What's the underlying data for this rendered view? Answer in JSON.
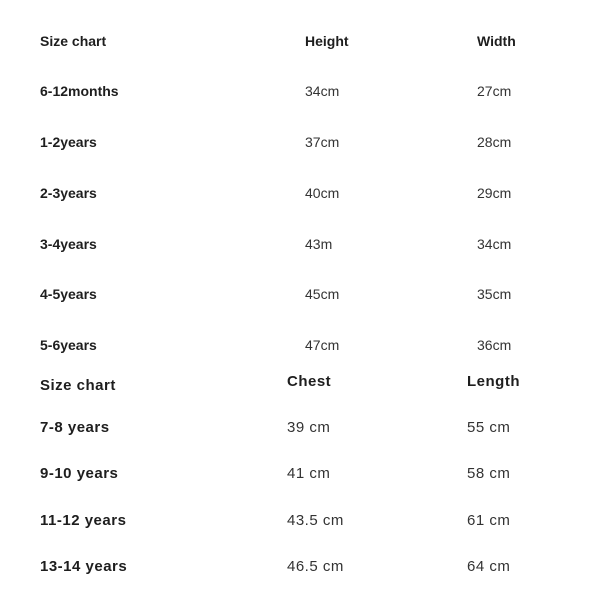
{
  "table1": {
    "headers": [
      "Size chart",
      "Height",
      "Width"
    ],
    "rows": [
      [
        "6-12months",
        "34cm",
        "27cm"
      ],
      [
        "1-2years",
        "37cm",
        "28cm"
      ],
      [
        "2-3years",
        "40cm",
        "29cm"
      ],
      [
        "3-4years",
        "43m",
        "34cm"
      ],
      [
        "4-5years",
        "45cm",
        "35cm"
      ],
      [
        "5-6years",
        "47cm",
        "36cm"
      ]
    ]
  },
  "table2": {
    "headers": [
      "Size chart",
      "Chest",
      "Length"
    ],
    "rows": [
      [
        "7-8 years",
        "39 cm",
        "55 cm"
      ],
      [
        "9-10 years",
        "41 cm",
        "58 cm"
      ],
      [
        "11-12 years",
        "43.5 cm",
        "61 cm"
      ],
      [
        "13-14 years",
        "46.5 cm",
        "64 cm"
      ]
    ]
  }
}
